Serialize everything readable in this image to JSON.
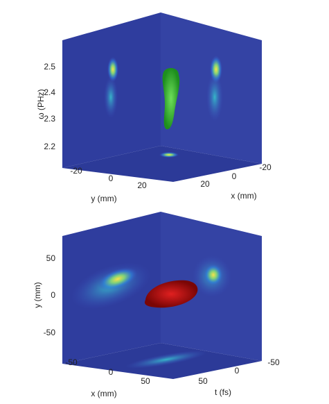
{
  "panels": [
    {
      "vertical_axis": {
        "label": "ω (PHz)",
        "ticks": [
          2.5,
          2.4,
          2.3,
          2.2
        ]
      },
      "left_axis": {
        "label": "y (mm)",
        "ticks": [
          -20,
          0,
          20
        ]
      },
      "right_axis": {
        "label": "x (mm)",
        "ticks": [
          -20,
          0,
          20
        ]
      }
    },
    {
      "vertical_axis": {
        "label": "y (mm)",
        "ticks": [
          50,
          0,
          -50
        ]
      },
      "left_axis": {
        "label": "x (mm)",
        "ticks": [
          -50,
          0,
          50
        ]
      },
      "right_axis": {
        "label": "t (fs)",
        "ticks": [
          -50,
          0,
          50
        ]
      }
    }
  ]
}
